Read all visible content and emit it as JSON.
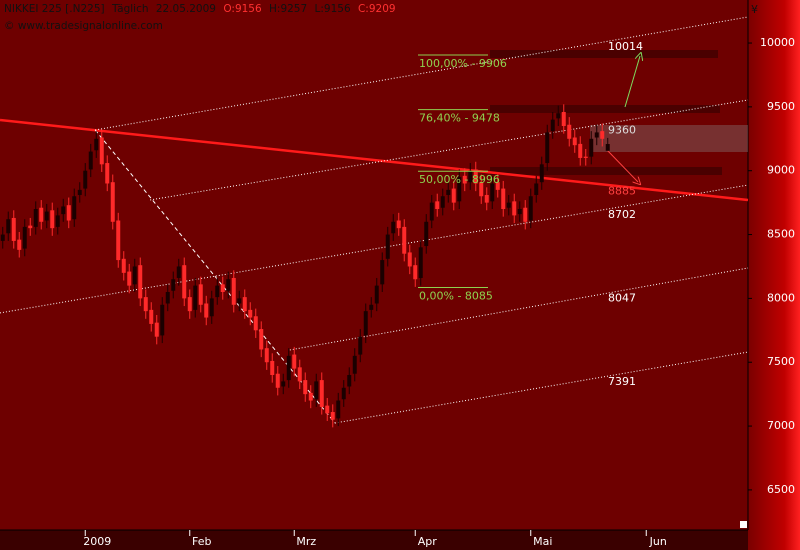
{
  "chart_data": {
    "type": "candlestick",
    "title": "NIKKEI 225 [.N225]",
    "period": "Täglich",
    "date": "22.05.2009",
    "ohlc_labels": [
      "O:9156",
      "H:9257",
      "L:9156",
      "C:9209"
    ],
    "subtitle": "© www.tradesignalonline.com",
    "currency": "¥",
    "up_color": "#1a0000",
    "down_color": "#ff2a2a",
    "x": [
      0,
      1,
      2,
      3,
      4,
      5,
      6,
      7,
      8,
      9,
      10,
      11,
      12,
      13,
      14,
      15,
      16,
      17,
      18,
      19,
      20,
      21,
      22,
      23,
      24,
      25,
      26,
      27,
      28,
      29,
      30,
      31,
      32,
      33,
      34,
      35,
      36,
      37,
      38,
      39,
      40,
      41,
      42,
      43,
      44,
      45,
      46,
      47,
      48,
      49,
      50,
      51,
      52,
      53,
      54,
      55,
      56,
      57,
      58,
      59,
      60,
      61,
      62,
      63,
      64,
      65,
      66,
      67,
      68,
      69,
      70,
      71,
      72,
      73,
      74,
      75,
      76,
      77,
      78,
      79,
      80,
      81,
      82,
      83,
      84,
      85,
      86,
      87,
      88,
      89,
      90,
      91,
      92,
      93,
      94,
      95,
      96,
      97,
      98,
      99,
      100,
      101,
      102,
      103,
      104,
      105,
      106,
      107,
      108,
      109,
      110
    ],
    "open": [
      8450,
      8510,
      8630,
      8460,
      8390,
      8570,
      8560,
      8710,
      8610,
      8690,
      8560,
      8660,
      8730,
      8620,
      8810,
      8860,
      9010,
      9160,
      9260,
      9060,
      8910,
      8610,
      8310,
      8210,
      8110,
      8260,
      8010,
      7910,
      7810,
      7710,
      7960,
      8060,
      8160,
      8260,
      8010,
      7910,
      8110,
      7960,
      7860,
      8010,
      8110,
      8060,
      8160,
      7960,
      8010,
      7910,
      7860,
      7760,
      7610,
      7510,
      7410,
      7310,
      7360,
      7560,
      7460,
      7360,
      7260,
      7210,
      7360,
      7160,
      7110,
      7060,
      7210,
      7310,
      7410,
      7560,
      7710,
      7910,
      7960,
      8110,
      8310,
      8510,
      8610,
      8560,
      8360,
      8260,
      8160,
      8410,
      8610,
      8760,
      8710,
      8810,
      8860,
      8760,
      8960,
      8910,
      9010,
      8910,
      8810,
      8760,
      8910,
      8860,
      8710,
      8760,
      8660,
      8710,
      8610,
      8810,
      8910,
      9060,
      9310,
      9410,
      9460,
      9360,
      9260,
      9210,
      9110,
      9110,
      9260,
      9310,
      9156
    ],
    "high": [
      8560,
      8680,
      8690,
      8520,
      8620,
      8630,
      8760,
      8770,
      8740,
      8750,
      8710,
      8780,
      8790,
      8860,
      8910,
      9060,
      9210,
      9310,
      9320,
      9120,
      8970,
      8670,
      8370,
      8270,
      8310,
      8320,
      8070,
      7970,
      7870,
      8010,
      8110,
      8210,
      8310,
      8320,
      8070,
      8160,
      8170,
      8020,
      8060,
      8160,
      8170,
      8210,
      8220,
      8060,
      8070,
      7970,
      7920,
      7820,
      7670,
      7570,
      7470,
      7410,
      7610,
      7620,
      7520,
      7420,
      7320,
      7410,
      7420,
      7220,
      7170,
      7260,
      7360,
      7460,
      7610,
      7760,
      7960,
      8010,
      8160,
      8360,
      8560,
      8660,
      8670,
      8620,
      8420,
      8320,
      8460,
      8660,
      8810,
      8820,
      8860,
      8910,
      8920,
      9010,
      9020,
      9060,
      9070,
      8970,
      8870,
      8960,
      8970,
      8920,
      8810,
      8820,
      8760,
      8770,
      8860,
      8960,
      9110,
      9360,
      9460,
      9510,
      9520,
      9420,
      9320,
      9270,
      9170,
      9310,
      9360,
      9370,
      9257
    ],
    "low": [
      8390,
      8450,
      8390,
      8320,
      8330,
      8490,
      8500,
      8540,
      8550,
      8490,
      8500,
      8600,
      8550,
      8560,
      8750,
      8800,
      8950,
      9100,
      8990,
      8840,
      8540,
      8240,
      8140,
      8040,
      8050,
      7940,
      7840,
      7740,
      7640,
      7650,
      7900,
      8000,
      8100,
      7940,
      7840,
      7850,
      7890,
      7790,
      7800,
      7950,
      7990,
      8000,
      7890,
      7900,
      7840,
      7790,
      7690,
      7540,
      7440,
      7340,
      7240,
      7250,
      7300,
      7390,
      7290,
      7190,
      7140,
      7150,
      7090,
      7040,
      6990,
      7000,
      7150,
      7250,
      7350,
      7500,
      7650,
      7850,
      7900,
      8050,
      8250,
      8450,
      8490,
      8290,
      8190,
      8090,
      8100,
      8350,
      8550,
      8640,
      8650,
      8750,
      8690,
      8700,
      8840,
      8850,
      8840,
      8740,
      8690,
      8700,
      8790,
      8640,
      8650,
      8590,
      8600,
      8540,
      8550,
      8750,
      8850,
      9000,
      9250,
      9350,
      9290,
      9190,
      9140,
      9040,
      9040,
      9050,
      9200,
      9190,
      9156
    ],
    "close": [
      8500,
      8620,
      8450,
      8380,
      8560,
      8550,
      8700,
      8600,
      8680,
      8550,
      8650,
      8720,
      8610,
      8800,
      8850,
      9000,
      9150,
      9250,
      9050,
      8900,
      8600,
      8300,
      8200,
      8100,
      8250,
      8000,
      7900,
      7800,
      7700,
      7950,
      8050,
      8150,
      8250,
      8000,
      7900,
      8100,
      7950,
      7850,
      8000,
      8100,
      8050,
      8150,
      7950,
      8000,
      7900,
      7850,
      7750,
      7600,
      7500,
      7400,
      7300,
      7350,
      7550,
      7450,
      7350,
      7250,
      7200,
      7350,
      7150,
      7100,
      7050,
      7200,
      7300,
      7400,
      7550,
      7700,
      7900,
      7950,
      8100,
      8300,
      8500,
      8600,
      8550,
      8350,
      8250,
      8150,
      8400,
      8600,
      8750,
      8700,
      8800,
      8850,
      8750,
      8950,
      8900,
      9000,
      8900,
      8800,
      8750,
      8900,
      8850,
      8700,
      8750,
      8650,
      8700,
      8600,
      8800,
      8900,
      9050,
      9300,
      9400,
      9450,
      9350,
      9250,
      9200,
      9100,
      9100,
      9250,
      9300,
      9250,
      9209
    ],
    "xlim": [
      -0.5,
      135.5
    ],
    "ylim": [
      6186,
      10337
    ],
    "xticks": [
      {
        "value": 15,
        "label": "2009"
      },
      {
        "value": 34,
        "label": "Feb"
      },
      {
        "value": 53,
        "label": "Mrz"
      },
      {
        "value": 75,
        "label": "Apr"
      },
      {
        "value": 96,
        "label": "Mai"
      },
      {
        "value": 117,
        "label": "Jun"
      }
    ],
    "yticks": [
      6500,
      7000,
      7500,
      8000,
      8500,
      9000,
      9500,
      10000
    ],
    "trendlines": [
      {
        "color": "#ff1a1a",
        "style": "solid",
        "x": [
          -0.5,
          135.5
        ],
        "y": [
          9397,
          8771
        ]
      },
      {
        "color": "#ffffff",
        "style": "dotted",
        "x": [
          16.8,
          135.5
        ],
        "y": [
          9319,
          10204
        ]
      },
      {
        "color": "#ffffff",
        "style": "dotted",
        "x": [
          26.8,
          135.5
        ],
        "y": [
          8771,
          9554
        ]
      },
      {
        "color": "#ffffff",
        "style": "dotted",
        "x": [
          -0.5,
          135.5
        ],
        "y": [
          7886,
          8888
        ]
      },
      {
        "color": "#ffffff",
        "style": "dotted",
        "x": [
          52.2,
          135.5
        ],
        "y": [
          7596,
          8238
        ]
      },
      {
        "color": "#ffffff",
        "style": "dotted",
        "x": [
          60.4,
          135.5
        ],
        "y": [
          7024,
          7580
        ]
      },
      {
        "color": "#ffffff",
        "style": "dashed",
        "x": [
          16.8,
          60.4
        ],
        "y": [
          9319,
          7024
        ]
      }
    ],
    "fib_levels": [
      {
        "value": 9906,
        "label": "100,00% - 9906"
      },
      {
        "value": 9478,
        "label": "76,40% - 9478"
      },
      {
        "value": 8996,
        "label": "50,00% - 8996"
      },
      {
        "value": 8085,
        "label": "0,00% - 8085"
      }
    ],
    "fib_color": "#8fd14f",
    "price_labels": [
      10014,
      9360,
      8885,
      8702,
      8047,
      7391
    ],
    "price_label_colors": [
      "#ffffff",
      "#dddddd",
      "#ff4040",
      "#ffffff",
      "#ffffff",
      "#ffffff"
    ]
  }
}
